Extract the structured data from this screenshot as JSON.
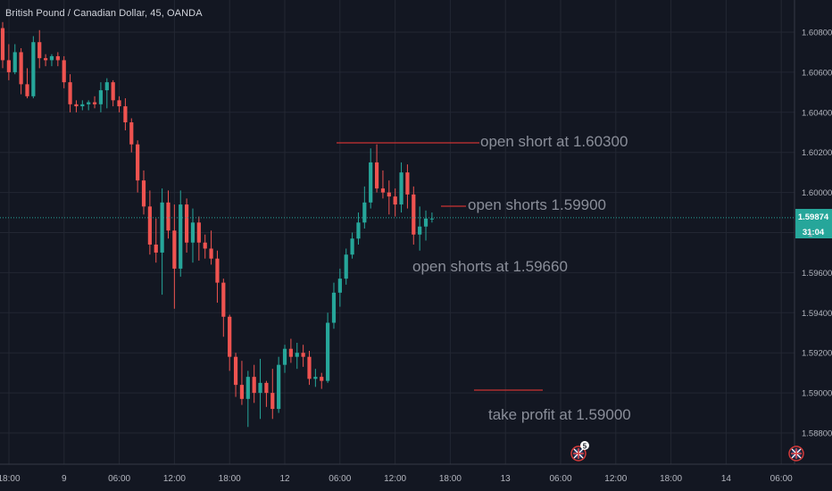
{
  "header": {
    "title": "British Pound / Canadian Dollar, 45, OANDA"
  },
  "price_badge": {
    "value": "1.59874",
    "countdown": "31:04",
    "partial_label": "1"
  },
  "events": {
    "badge_count": "5"
  },
  "annotations": {
    "short1": "open short at 1.60300",
    "short2": "open shorts 1.59900",
    "short3": "open shorts at 1.59660",
    "tp": "take profit at 1.59000"
  },
  "colors": {
    "background": "#131722",
    "up": "#26a69a",
    "down": "#ef5350",
    "grid": "#2a2e39",
    "price_line": "#26a69a",
    "annotation_line": "#cc3333"
  },
  "chart_data": {
    "type": "candlestick",
    "title": "British Pound / Canadian Dollar, 45, OANDA",
    "ylim": [
      1.5869,
      1.6091
    ],
    "y_ticks": [
      "1.60800",
      "1.60600",
      "1.60400",
      "1.60200",
      "1.60000",
      "1.59800",
      "1.59600",
      "1.59400",
      "1.59200",
      "1.59000",
      "1.58800"
    ],
    "x_ticks": [
      "18:00",
      "9",
      "06:00",
      "12:00",
      "18:00",
      "12",
      "06:00",
      "12:00",
      "18:00",
      "13",
      "06:00",
      "12:00",
      "18:00",
      "14",
      "06:00"
    ],
    "last_price": 1.59874,
    "candles": [
      [
        1.6082,
        1.6085,
        1.6062,
        1.6066
      ],
      [
        1.6066,
        1.6074,
        1.6056,
        1.606
      ],
      [
        1.606,
        1.6074,
        1.6059,
        1.607
      ],
      [
        1.607,
        1.6072,
        1.6049,
        1.6054
      ],
      [
        1.6054,
        1.6062,
        1.6047,
        1.6048
      ],
      [
        1.6048,
        1.6078,
        1.6047,
        1.6075
      ],
      [
        1.6075,
        1.6081,
        1.6062,
        1.6067
      ],
      [
        1.6067,
        1.6069,
        1.6063,
        1.6066
      ],
      [
        1.6066,
        1.6069,
        1.6063,
        1.6068
      ],
      [
        1.6068,
        1.607,
        1.6063,
        1.6066
      ],
      [
        1.6066,
        1.6068,
        1.6052,
        1.6055
      ],
      [
        1.6055,
        1.6059,
        1.604,
        1.6044
      ],
      [
        1.6044,
        1.6046,
        1.604,
        1.6043
      ],
      [
        1.6043,
        1.6046,
        1.6041,
        1.6044
      ],
      [
        1.6044,
        1.6046,
        1.6041,
        1.6045
      ],
      [
        1.6045,
        1.6048,
        1.6042,
        1.6044
      ],
      [
        1.6044,
        1.6055,
        1.604,
        1.6051
      ],
      [
        1.6051,
        1.6057,
        1.6042,
        1.6055
      ],
      [
        1.6055,
        1.6056,
        1.6043,
        1.6046
      ],
      [
        1.6046,
        1.6048,
        1.604,
        1.6043
      ],
      [
        1.6043,
        1.6047,
        1.6031,
        1.6035
      ],
      [
        1.6035,
        1.6037,
        1.602,
        1.6024
      ],
      [
        1.6024,
        1.6026,
        1.6,
        1.6006
      ],
      [
        1.6006,
        1.6011,
        1.5989,
        1.5993
      ],
      [
        1.5993,
        1.6001,
        1.5969,
        1.5974
      ],
      [
        1.5974,
        1.5987,
        1.5965,
        1.597
      ],
      [
        1.597,
        1.6002,
        1.5949,
        1.5995
      ],
      [
        1.5995,
        1.6001,
        1.5977,
        1.5981
      ],
      [
        1.5981,
        1.5994,
        1.5942,
        1.5962
      ],
      [
        1.5962,
        1.6001,
        1.5958,
        1.5994
      ],
      [
        1.5994,
        1.5997,
        1.597,
        1.5975
      ],
      [
        1.5975,
        1.5992,
        1.5965,
        1.5985
      ],
      [
        1.5985,
        1.5988,
        1.5966,
        1.5975
      ],
      [
        1.5975,
        1.5979,
        1.5967,
        1.5972
      ],
      [
        1.5972,
        1.5981,
        1.5964,
        1.5967
      ],
      [
        1.5967,
        1.5971,
        1.5945,
        1.5955
      ],
      [
        1.5955,
        1.5957,
        1.5928,
        1.5938
      ],
      [
        1.5938,
        1.5939,
        1.5911,
        1.5918
      ],
      [
        1.5918,
        1.592,
        1.5898,
        1.5904
      ],
      [
        1.5904,
        1.5916,
        1.5894,
        1.5897
      ],
      [
        1.5897,
        1.5911,
        1.5883,
        1.5908
      ],
      [
        1.5908,
        1.5914,
        1.5895,
        1.59
      ],
      [
        1.59,
        1.5917,
        1.5887,
        1.5905
      ],
      [
        1.5905,
        1.5906,
        1.5893,
        1.59
      ],
      [
        1.59,
        1.5912,
        1.5887,
        1.5892
      ],
      [
        1.5892,
        1.5918,
        1.589,
        1.5914
      ],
      [
        1.5914,
        1.5924,
        1.591,
        1.5922
      ],
      [
        1.5922,
        1.5927,
        1.5915,
        1.5918
      ],
      [
        1.5918,
        1.5925,
        1.5912,
        1.592
      ],
      [
        1.592,
        1.5924,
        1.5913,
        1.5918
      ],
      [
        1.5918,
        1.5921,
        1.5904,
        1.5907
      ],
      [
        1.5907,
        1.5912,
        1.5903,
        1.5908
      ],
      [
        1.5908,
        1.591,
        1.5902,
        1.5906
      ],
      [
        1.5906,
        1.594,
        1.5905,
        1.5935
      ],
      [
        1.5935,
        1.5955,
        1.5932,
        1.595
      ],
      [
        1.595,
        1.5962,
        1.5943,
        1.5957
      ],
      [
        1.5957,
        1.5972,
        1.5954,
        1.5969
      ],
      [
        1.5969,
        1.598,
        1.5967,
        1.5977
      ],
      [
        1.5977,
        1.599,
        1.5974,
        1.5985
      ],
      [
        1.5985,
        1.6003,
        1.5982,
        1.5995
      ],
      [
        1.5995,
        1.6022,
        1.5992,
        1.6015
      ],
      [
        1.6015,
        1.6024,
        1.6,
        1.6002
      ],
      [
        1.6002,
        1.6011,
        1.5997,
        1.6
      ],
      [
        1.6,
        1.6006,
        1.5989,
        1.5998
      ],
      [
        1.5998,
        1.6002,
        1.5988,
        1.5994
      ],
      [
        1.5994,
        1.6015,
        1.599,
        1.601
      ],
      [
        1.601,
        1.6014,
        1.5992,
        1.5999
      ],
      [
        1.5999,
        1.6003,
        1.5974,
        1.5979
      ],
      [
        1.5979,
        1.5993,
        1.5971,
        1.5983
      ],
      [
        1.5983,
        1.5991,
        1.5976,
        1.5987
      ],
      [
        1.5987,
        1.599,
        1.5985,
        1.5987
      ]
    ]
  }
}
